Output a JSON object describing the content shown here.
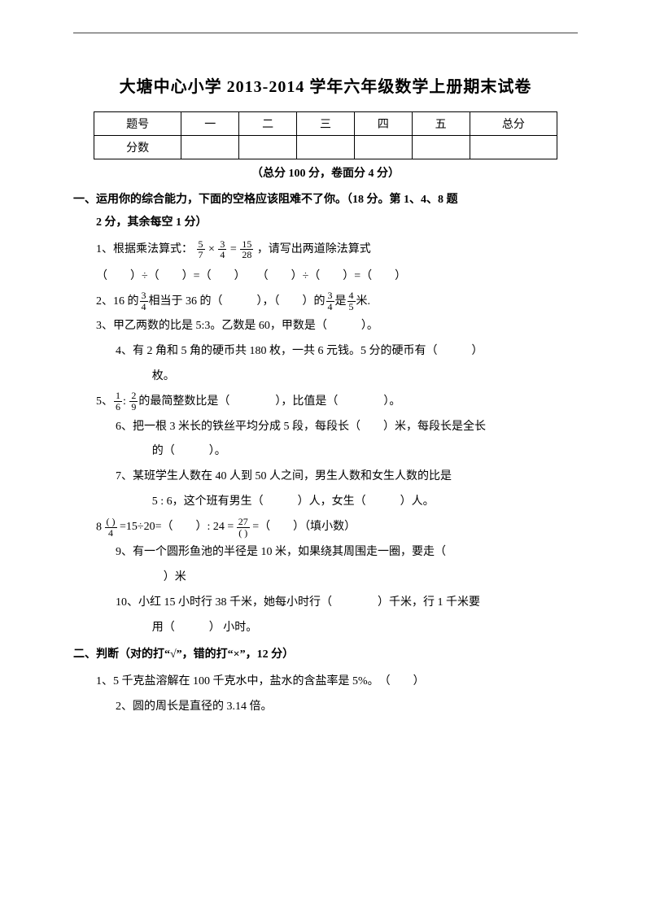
{
  "colors": {
    "text": "#000000",
    "background": "#ffffff",
    "rule": "#444444",
    "table_border": "#000000"
  },
  "title": "大塘中心小学 2013-2014 学年六年级数学上册期末试卷",
  "score_table": {
    "header_label": "题号",
    "row_label": "分数",
    "columns": [
      "一",
      "二",
      "三",
      "四",
      "五",
      "总分"
    ]
  },
  "subtitle": "（总分 100 分，卷面分 4 分）",
  "section1": {
    "heading_line1": "一、运用你的综合能力，下面的空格应该阻难不了你。（18 分。第 1、4、8 题",
    "heading_line2": "2 分，其余每空 1 分）",
    "q1": {
      "num": "1、",
      "text_a": "根据乘法算式：",
      "frac1_n": "5",
      "frac1_d": "7",
      "op1": "×",
      "frac2_n": "3",
      "frac2_d": "4",
      "eq": "=",
      "frac3_n": "15",
      "frac3_d": "28",
      "text_b": "，请写出两道除法算式",
      "eq_line": "（　　）÷（　　）=（　　）　　（　　）÷（　　）=（　　）"
    },
    "q2": {
      "num": "2、",
      "text_a": "16 的",
      "frac_n": "3",
      "frac_d": "4",
      "text_b": "相当于 36 的（　　　），（　　）的",
      "frac2_n": "3",
      "frac2_d": "4",
      "text_c": "是",
      "frac3_n": "4",
      "frac3_d": "5",
      "text_d": "米."
    },
    "q3": {
      "num": "3、",
      "text": "甲乙两数的比是 5:3。乙数是 60，甲数是（　　　）。"
    },
    "q4": {
      "num": "4、",
      "text_a": "有 2 角和 5 角的硬币共 180 枚，一共 6 元钱。5 分的硬币有（　　　）",
      "text_b": "枚。"
    },
    "q5": {
      "num": "5、",
      "frac1_n": "1",
      "frac1_d": "6",
      "colon": ":",
      "frac2_n": "2",
      "frac2_d": "9",
      "text": "的最简整数比是（　　　　），比值是（　　　　）。"
    },
    "q6": {
      "num": "6、",
      "text_a": "把一根 3 米长的铁丝平均分成 5 段，每段长（　　）米，每段长是全长",
      "text_b": "的（　　　）。"
    },
    "q7": {
      "num": "7、",
      "text_a": "某班学生人数在 40 人到 50 人之间，男生人数和女生人数的比是",
      "text_b": "5 : 6，这个班有男生（　　　）人，女生（　　　）人。"
    },
    "q8": {
      "num": "8",
      "frac1_top": "(  )",
      "frac1_bot": "4",
      "seg_a": " =15÷20=（　　）: 24 = ",
      "frac2_top": "27",
      "frac2_bot": "(  )",
      "seg_b": " =（　　）（填小数）"
    },
    "q9": {
      "num": "9、",
      "text_a": "有一个圆形鱼池的半径是 10 米，如果绕其周围走一圈，要走（　",
      "text_b": "　）米"
    },
    "q10": {
      "num": "10、",
      "text_a": "小红 15 小时行 38 千米，她每小时行（　　　　）千米，行 1 千米要",
      "text_b": "用（　　　） 小时。"
    }
  },
  "section2": {
    "heading": "二、判断（对的打“√”，错的打“×”，12 分）",
    "q1": {
      "num": "1、",
      "text": "5 千克盐溶解在 100 千克水中，盐水的含盐率是 5%。　（　　）"
    },
    "q2": {
      "num": "2、",
      "text": "圆的周长是直径的 3.14 倍。"
    }
  }
}
